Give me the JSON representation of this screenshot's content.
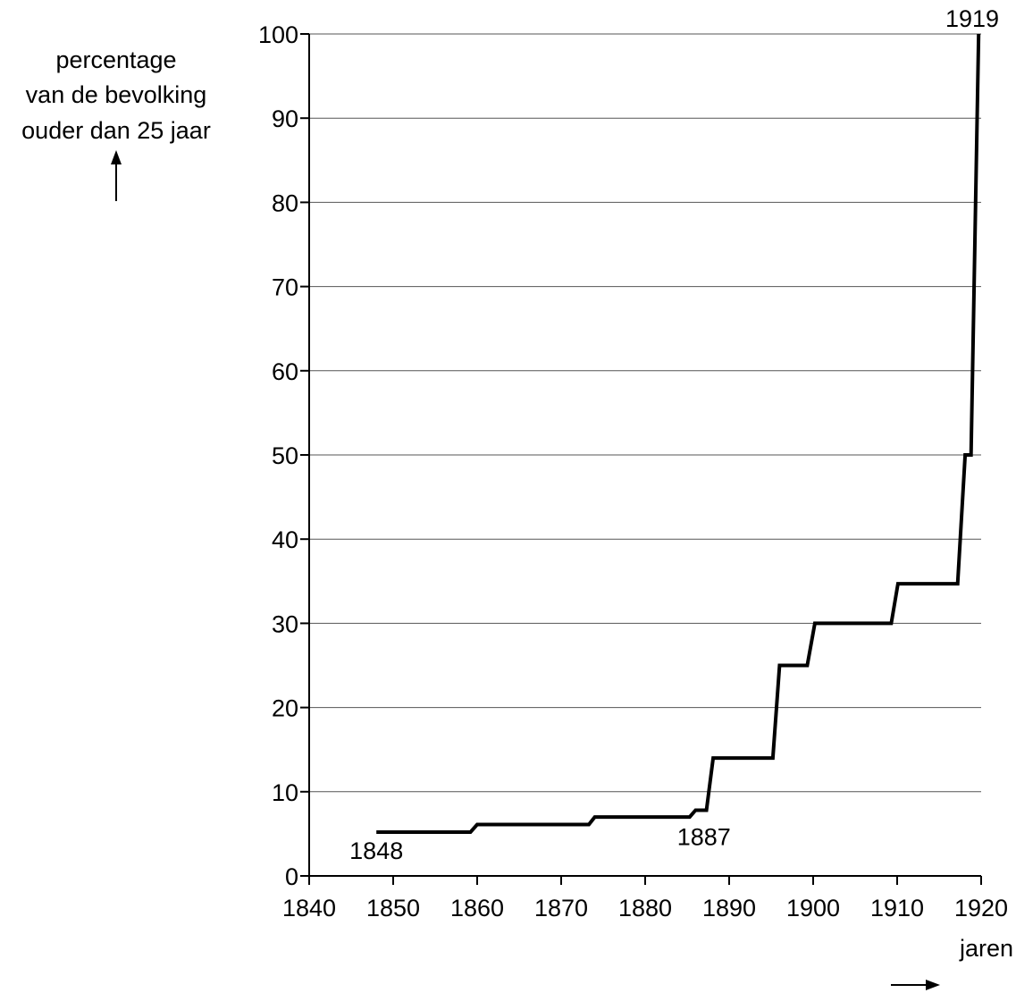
{
  "chart_data": {
    "type": "line",
    "ylabel_lines": [
      "percentage",
      "van de bevolking",
      "ouder dan 25 jaar"
    ],
    "xlabel": "jaren",
    "xlim": [
      1840,
      1920
    ],
    "ylim": [
      0,
      100
    ],
    "x_ticks": [
      1840,
      1850,
      1860,
      1870,
      1880,
      1890,
      1900,
      1910,
      1920
    ],
    "y_ticks": [
      0,
      10,
      20,
      30,
      40,
      50,
      60,
      70,
      80,
      90,
      100
    ],
    "grid": "horizontal",
    "annotations": [
      {
        "text": "1848",
        "x": 1848,
        "y": 5.2
      },
      {
        "text": "1887",
        "x": 1887,
        "y": 7.8
      },
      {
        "text": "1919",
        "x": 1919.7,
        "y": 100
      }
    ],
    "series": [
      {
        "x": [
          1848,
          1859.2,
          1860,
          1873.3,
          1874,
          1885.3,
          1886,
          1887.3,
          1888.1,
          1895.2,
          1896,
          1899.3,
          1900.2,
          1909.3,
          1910.1,
          1917.2,
          1918.1,
          1918.8,
          1919.7
        ],
        "y": [
          5.2,
          5.2,
          6.1,
          6.1,
          7.0,
          7.0,
          7.8,
          7.8,
          14.0,
          14.0,
          25.0,
          25.0,
          30.0,
          30.0,
          34.7,
          34.7,
          50.0,
          50.0,
          100
        ]
      }
    ]
  }
}
